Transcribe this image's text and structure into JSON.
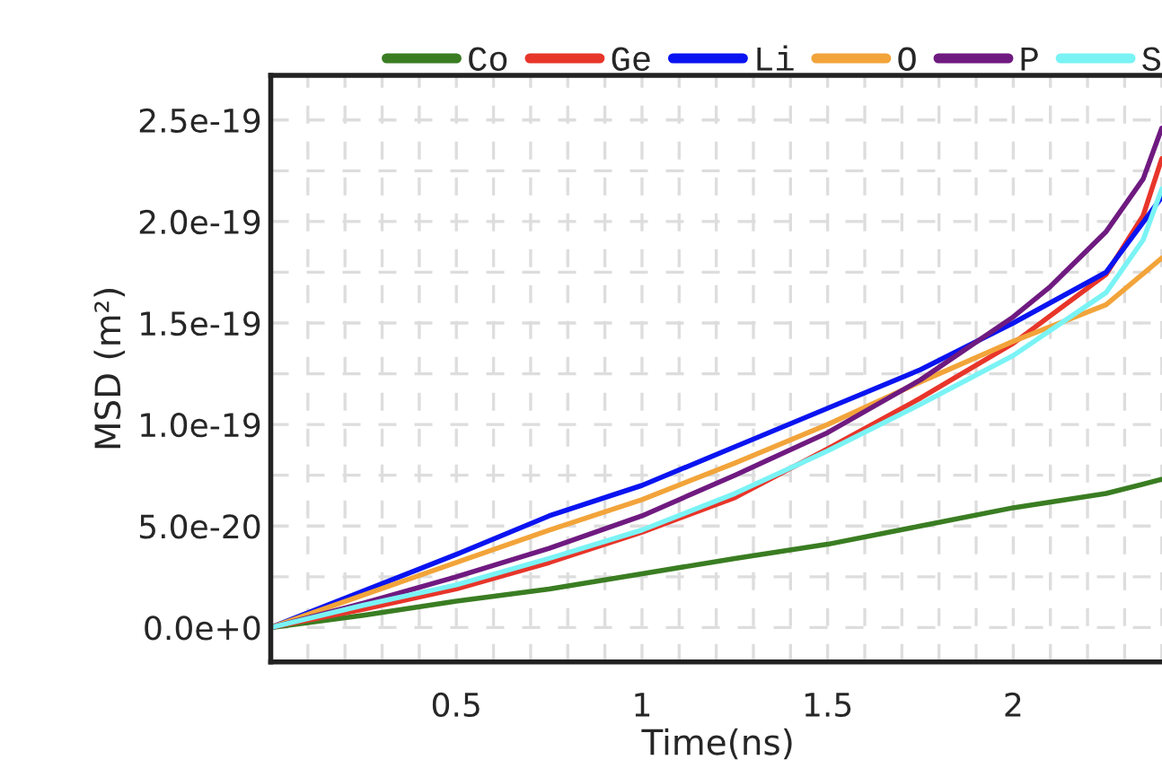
{
  "chart_data": {
    "type": "line",
    "xlabel": "Time(ns)",
    "ylabel": "MSD (m²)",
    "xlim": [
      0,
      2.41
    ],
    "ylim": [
      -1.7e-20,
      2.72e-19
    ],
    "xticks": [
      0.5,
      1,
      1.5,
      2
    ],
    "yticks": [
      {
        "value": 0,
        "label": "0.0e+0"
      },
      {
        "value": 5e-20,
        "label": "5.0e-20"
      },
      {
        "value": 1e-19,
        "label": "1.0e-19"
      },
      {
        "value": 1.5e-19,
        "label": "1.5e-19"
      },
      {
        "value": 2e-19,
        "label": "2.0e-19"
      },
      {
        "value": 2.5e-19,
        "label": "2.5e-19"
      }
    ],
    "grid": true,
    "legend": "top",
    "marker": "none",
    "line_style": "solid",
    "series": [
      {
        "name": "Co",
        "color": "#3a7d22",
        "x": [
          0,
          0.25,
          0.5,
          0.75,
          1,
          1.25,
          1.5,
          1.75,
          2,
          2.25,
          2.4
        ],
        "values": [
          0,
          6e-21,
          1.3e-20,
          1.9e-20,
          2.65e-20,
          3.4e-20,
          4.1e-20,
          5e-20,
          5.9e-20,
          6.6e-20,
          7.3e-20
        ]
      },
      {
        "name": "Ge",
        "color": "#e8352a",
        "x": [
          0,
          0.25,
          0.5,
          0.75,
          1,
          1.25,
          1.5,
          1.75,
          2,
          2.25,
          2.35,
          2.4
        ],
        "values": [
          0,
          9e-21,
          1.9e-20,
          3.2e-20,
          4.7e-20,
          6.4e-20,
          8.8e-20,
          1.13e-19,
          1.4e-19,
          1.74e-19,
          2.03e-19,
          2.31e-19
        ]
      },
      {
        "name": "Li",
        "color": "#0a14f0",
        "x": [
          0,
          0.25,
          0.5,
          0.75,
          1,
          1.25,
          1.5,
          1.75,
          2,
          2.25,
          2.4
        ],
        "values": [
          0,
          1.8e-20,
          3.6e-20,
          5.5e-20,
          7e-20,
          8.9e-20,
          1.08e-19,
          1.27e-19,
          1.5e-19,
          1.75e-19,
          2.12e-19
        ]
      },
      {
        "name": "O",
        "color": "#f2a43a",
        "x": [
          0,
          0.25,
          0.5,
          0.75,
          1,
          1.25,
          1.5,
          1.75,
          2,
          2.25,
          2.4
        ],
        "values": [
          0,
          1.6e-20,
          3.2e-20,
          4.8e-20,
          6.3e-20,
          8.1e-20,
          1e-19,
          1.21e-19,
          1.41e-19,
          1.59e-19,
          1.82e-19
        ]
      },
      {
        "name": "P",
        "color": "#6f1a80",
        "x": [
          0,
          0.25,
          0.5,
          0.75,
          1,
          1.25,
          1.5,
          1.75,
          2,
          2.1,
          2.25,
          2.35,
          2.4
        ],
        "values": [
          0,
          1.2e-20,
          2.5e-20,
          3.9e-20,
          5.5e-20,
          7.5e-20,
          9.6e-20,
          1.22e-19,
          1.53e-19,
          1.68e-19,
          1.95e-19,
          2.21e-19,
          2.46e-19
        ]
      },
      {
        "name": "S",
        "color": "#7af3f5",
        "x": [
          0,
          0.25,
          0.5,
          0.75,
          1,
          1.25,
          1.5,
          1.75,
          2,
          2.25,
          2.35,
          2.4
        ],
        "values": [
          0,
          1.1e-20,
          2.1e-20,
          3.4e-20,
          4.8e-20,
          6.6e-20,
          8.7e-20,
          1.1e-19,
          1.34e-19,
          1.65e-19,
          1.91e-19,
          2.16e-19
        ]
      }
    ]
  }
}
